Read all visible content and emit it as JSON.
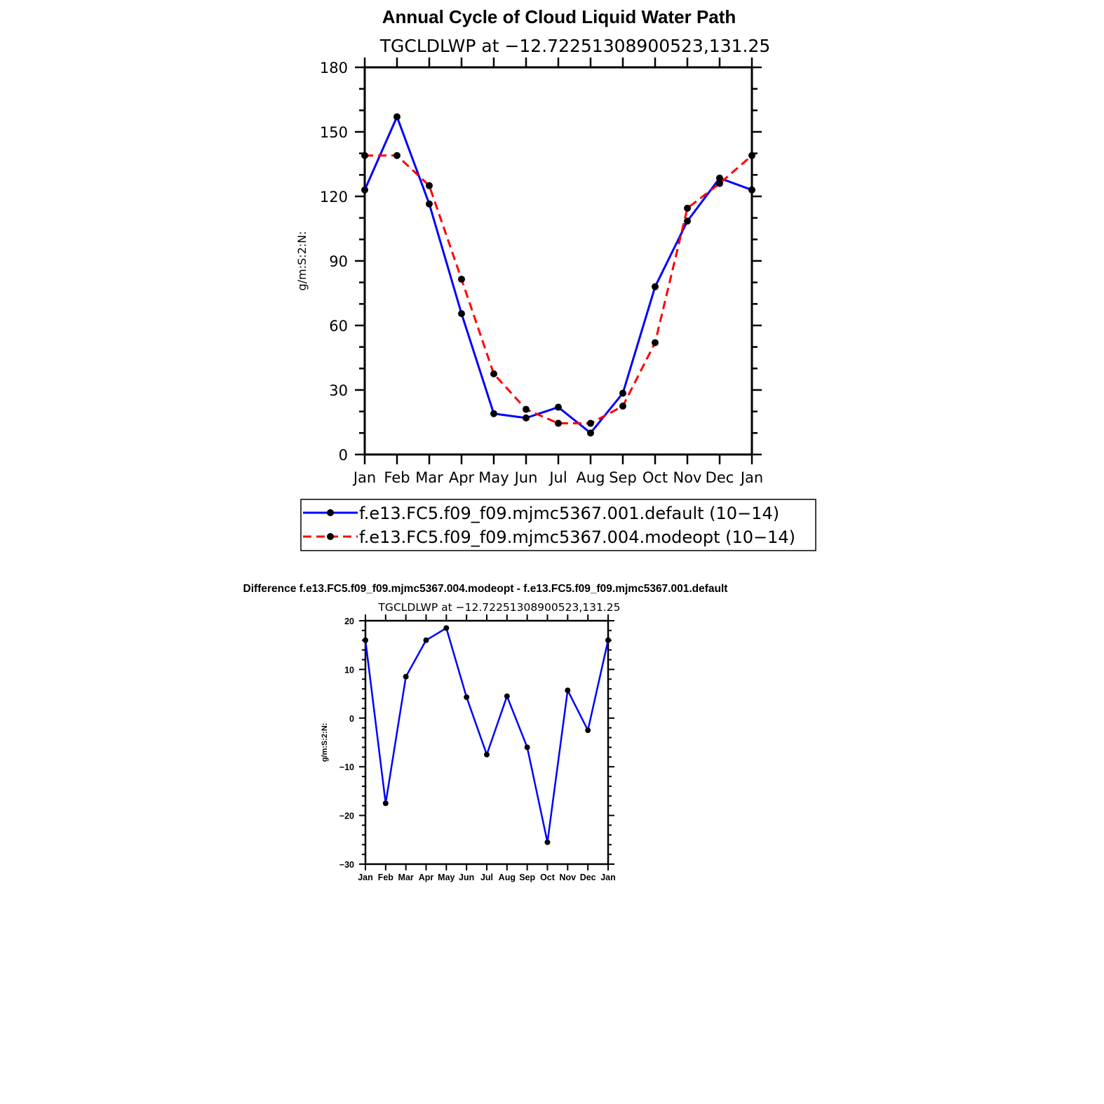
{
  "page_title": "Annual Cycle of Cloud Liquid Water Path",
  "chart_data": [
    {
      "type": "line",
      "title": "Annual Cycle of Cloud Liquid Water Path",
      "subtitle": "TGCLDLWP  at  −12.72251308900523,131.25",
      "xlabel": "",
      "ylabel": "g/m:S:2:N:",
      "categories": [
        "Jan",
        "Feb",
        "Mar",
        "Apr",
        "May",
        "Jun",
        "Jul",
        "Aug",
        "Sep",
        "Oct",
        "Nov",
        "Dec",
        "Jan"
      ],
      "ylim": [
        0,
        180
      ],
      "yticks": [
        "0",
        "30",
        "60",
        "90",
        "120",
        "150",
        "180"
      ],
      "grid": false,
      "legend_position": "bottom",
      "series": [
        {
          "name": "f.e13.FC5.f09_f09.mjmc5367.001.default (10−14)",
          "color": "#0000ff",
          "dash": "solid",
          "values": [
            123,
            157,
            116.5,
            65.5,
            19,
            17,
            22,
            10,
            28.5,
            78,
            108.5,
            128.5,
            123
          ]
        },
        {
          "name": "f.e13.FC5.f09_f09.mjmc5367.004.modeopt (10−14)",
          "color": "#ff0000",
          "dash": "dashed",
          "values": [
            139,
            139,
            125,
            81.5,
            37.5,
            21,
            14.5,
            14.5,
            22.5,
            52,
            114.5,
            126,
            139
          ]
        }
      ]
    },
    {
      "type": "line",
      "title": "Difference f.e13.FC5.f09_f09.mjmc5367.004.modeopt - f.e13.FC5.f09_f09.mjmc5367.001.default",
      "subtitle": "TGCLDLWP  at  −12.72251308900523,131.25",
      "xlabel": "",
      "ylabel": "g/m:S:2:N:",
      "categories": [
        "Jan",
        "Feb",
        "Mar",
        "Apr",
        "May",
        "Jun",
        "Jul",
        "Aug",
        "Sep",
        "Oct",
        "Nov",
        "Dec",
        "Jan"
      ],
      "ylim": [
        -30,
        20
      ],
      "yticks": [
        "−30",
        "−20",
        "−10",
        "0",
        "10",
        "20"
      ],
      "grid": false,
      "series": [
        {
          "color": "#0000ff",
          "dash": "solid",
          "values": [
            16,
            -17.5,
            8.5,
            16,
            18.5,
            4.3,
            -7.5,
            4.5,
            -6,
            -25.5,
            5.7,
            -2.5,
            16
          ]
        }
      ]
    }
  ]
}
